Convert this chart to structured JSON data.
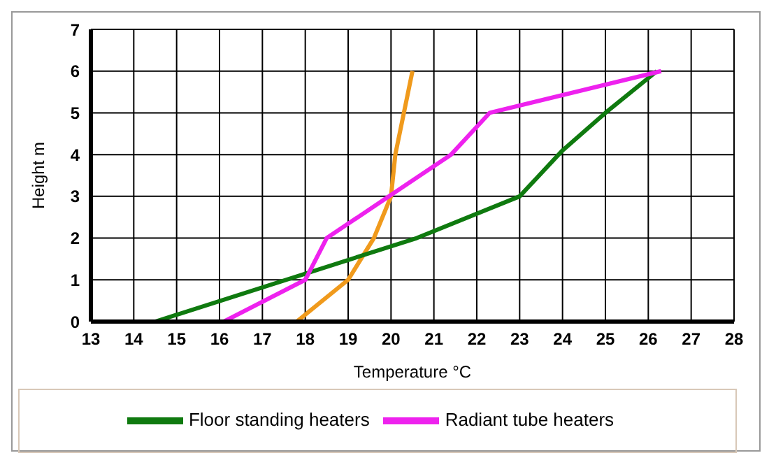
{
  "chart_data": {
    "type": "line",
    "xlabel": "Temperature °C",
    "ylabel": "Height m",
    "xlim": [
      13,
      28
    ],
    "xticks": [
      13,
      14,
      15,
      16,
      17,
      18,
      19,
      20,
      21,
      22,
      23,
      24,
      25,
      26,
      27,
      28
    ],
    "ylim": [
      0,
      7
    ],
    "yticks": [
      0,
      1,
      2,
      3,
      4,
      5,
      6,
      7
    ],
    "grid": true,
    "legend": "bottom",
    "marker": "none",
    "line_style": "solid",
    "series": [
      {
        "color": "#f09a1c",
        "x": [
          17.8,
          19,
          19.6,
          20,
          20.1,
          20.3,
          20.5
        ],
        "values": [
          0,
          1,
          2,
          3,
          4,
          5,
          6
        ]
      },
      {
        "name": "Floor standing heaters",
        "color": "#0f7a0f",
        "x": [
          14.5,
          20.6,
          23,
          24,
          25,
          26.2
        ],
        "values": [
          0,
          2,
          3,
          4.1,
          5,
          6
        ]
      },
      {
        "name": "Radiant tube heaters",
        "color": "#ee22ee",
        "x": [
          16.1,
          18,
          18.5,
          21.4,
          22.3,
          26.3
        ],
        "values": [
          0,
          1,
          2,
          4,
          5,
          6
        ]
      }
    ]
  }
}
